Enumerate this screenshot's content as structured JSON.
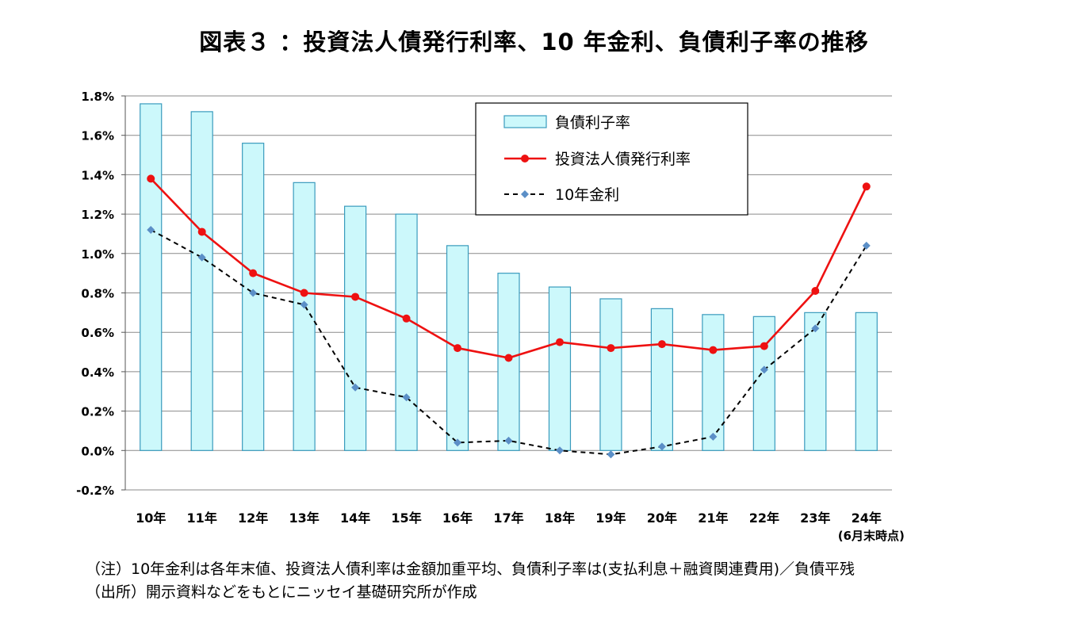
{
  "title": "図表３ ：投資法人債発行利率、10 年金利、負債利子率の推移",
  "notes": [
    "（注）10年金利は各年末値、投資法人債利率は金額加重平均、負債利子率は(支払利息＋融資関連費用)／負債平残",
    "（出所）開示資料などをもとにニッセイ基礎研究所が作成"
  ],
  "chart_data": {
    "type": "bar",
    "categories": [
      "10年",
      "11年",
      "12年",
      "13年",
      "14年",
      "15年",
      "16年",
      "17年",
      "18年",
      "19年",
      "20年",
      "21年",
      "22年",
      "23年",
      "24年"
    ],
    "category_sublabel": "(6月末時点)",
    "yticks": [
      "1.8%",
      "1.6%",
      "1.4%",
      "1.2%",
      "1.0%",
      "0.8%",
      "0.6%",
      "0.4%",
      "0.2%",
      "0.0%",
      "-0.2%"
    ],
    "ylim": [
      -0.2,
      1.8
    ],
    "grid": true,
    "legend_position": "top-right",
    "series": [
      {
        "name": "負債利子率",
        "type": "bar",
        "color": "#ccf8fb",
        "stroke": "#3a9bbd",
        "values": [
          1.76,
          1.72,
          1.56,
          1.36,
          1.24,
          1.2,
          1.04,
          0.9,
          0.83,
          0.77,
          0.72,
          0.69,
          0.68,
          0.7,
          0.7
        ]
      },
      {
        "name": "投資法人債発行利率",
        "type": "line",
        "color": "#ee1111",
        "values": [
          1.38,
          1.11,
          0.9,
          0.8,
          0.78,
          0.67,
          0.52,
          0.47,
          0.55,
          0.52,
          0.54,
          0.51,
          0.53,
          0.81,
          1.34
        ]
      },
      {
        "name": "10年金利",
        "type": "line-dashed",
        "color": "#000000",
        "marker_color": "#5b8fc7",
        "values": [
          1.12,
          0.98,
          0.8,
          0.74,
          0.32,
          0.27,
          0.04,
          0.05,
          0.0,
          -0.02,
          0.02,
          0.07,
          0.41,
          0.62,
          1.04
        ]
      }
    ]
  }
}
